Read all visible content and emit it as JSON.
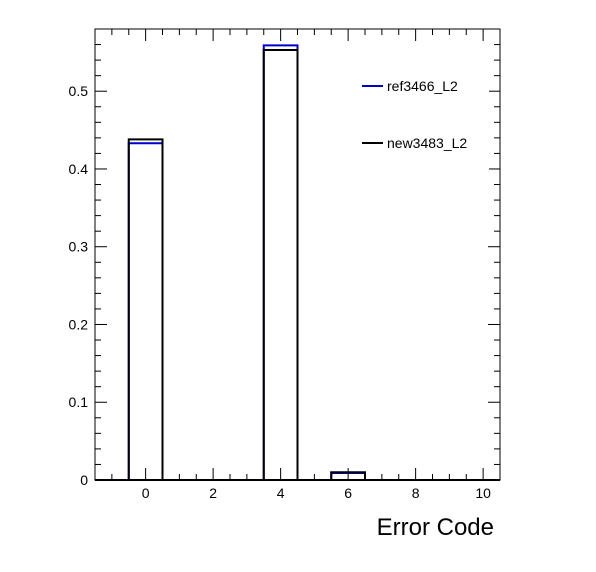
{
  "chart_data": {
    "type": "bar",
    "histogram": true,
    "bin_width": 1,
    "xlabel": "Error Code",
    "ylabel": "",
    "xlim": [
      -1.5,
      10.5
    ],
    "ylim": [
      0,
      0.58
    ],
    "x_ticks": [
      0,
      2,
      4,
      6,
      8,
      10
    ],
    "x_tick_labels": [
      "0",
      "2",
      "4",
      "6",
      "8",
      "10"
    ],
    "y_ticks": [
      0,
      0.1,
      0.2,
      0.3,
      0.4,
      0.5
    ],
    "y_tick_labels": [
      "0",
      "0.1",
      "0.2",
      "0.3",
      "0.4",
      "0.5"
    ],
    "x": [
      0,
      4,
      6
    ],
    "series": [
      {
        "name": "ref3466_L2",
        "color": "#0000cc",
        "values": [
          0.433,
          0.559,
          0.009
        ]
      },
      {
        "name": "new3483_L2",
        "color": "#000000",
        "values": [
          0.438,
          0.553,
          0.01
        ]
      }
    ],
    "legend_placement": "top-right",
    "grid": false
  }
}
